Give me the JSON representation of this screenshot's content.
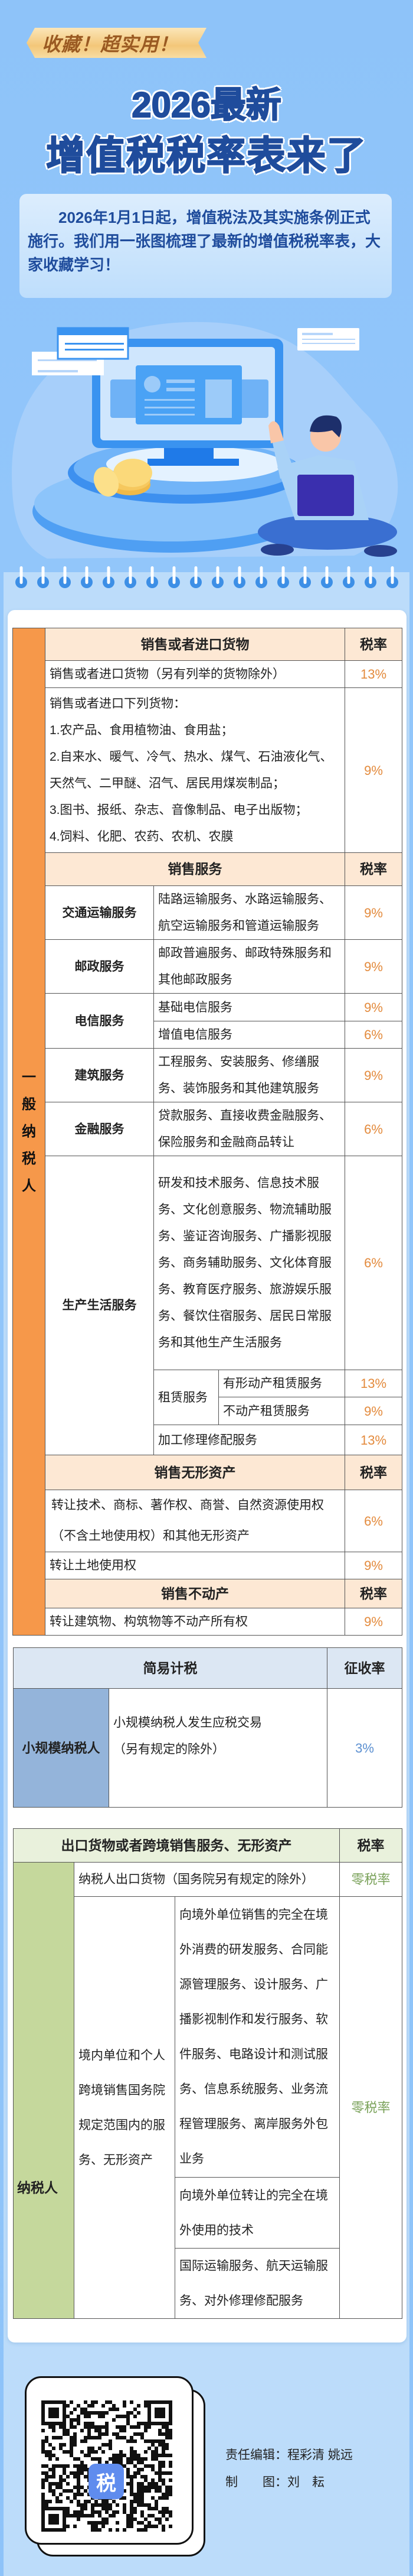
{
  "header": {
    "badge": "收藏！超实用！",
    "title_line1": "2026最新",
    "title_line2": "增值税税率表来了",
    "intro": "2026年1月1日起，增值税法及其实施条例正式施行。我们用一张图梳理了最新的增值税税率表，大家收藏学习！"
  },
  "general_taxpayer": {
    "side_label": "一般纳税人",
    "goods": {
      "header": "销售或者进口货物",
      "rate_header": "税率",
      "general": {
        "text": "销售或者进口货物（另有列举的货物除外）",
        "rate": "13%"
      },
      "listed": {
        "intro": "销售或者进口下列货物：",
        "items": [
          "1.农产品、食用植物油、食用盐；",
          "2.自来水、暖气、冷气、热水、煤气、石油液化气、天然气、二甲醚、沼气、居民用煤炭制品；",
          "3.图书、报纸、杂志、音像制品、电子出版物；",
          "4.饲料、化肥、农药、农机、农膜"
        ],
        "rate": "9%"
      }
    },
    "services": {
      "header": "销售服务",
      "rate_header": "税率",
      "transport": {
        "category": "交通运输服务",
        "desc": "陆路运输服务、水路运输服务、航空运输服务和管道运输服务",
        "rate": "9%"
      },
      "postal": {
        "category": "邮政服务",
        "desc": "邮政普遍服务、邮政特殊服务和其他邮政服务",
        "rate": "9%"
      },
      "telecom": {
        "category": "电信服务",
        "basic": {
          "desc": "基础电信服务",
          "rate": "9%"
        },
        "value_added": {
          "desc": "增值电信服务",
          "rate": "6%"
        }
      },
      "construction": {
        "category": "建筑服务",
        "desc": "工程服务、安装服务、修缮服务、装饰服务和其他建筑服务",
        "rate": "9%"
      },
      "finance": {
        "category": "金融服务",
        "desc": "贷款服务、直接收费金融服务、保险服务和金融商品转让",
        "rate": "6%"
      },
      "life": {
        "category": "生产生活服务",
        "desc": "研发和技术服务、信息技术服务、文化创意服务、物流辅助服务、鉴证咨询服务、广播影视服务、商务辅助服务、文化体育服务、教育医疗服务、旅游娱乐服务、餐饮住宿服务、居民日常服务和其他生产生活服务",
        "rate": "6%",
        "leasing": {
          "label": "租赁服务",
          "tangible": {
            "desc": "有形动产租赁服务",
            "rate": "13%"
          },
          "real_estate": {
            "desc": "不动产租赁服务",
            "rate": "9%"
          }
        },
        "repair": {
          "desc": "加工修理修配服务",
          "rate": "13%"
        }
      }
    },
    "intangible": {
      "header": "销售无形资产",
      "rate_header": "税率",
      "tech": {
        "desc": "转让技术、商标、著作权、商誉、自然资源使用权（不含土地使用权）和其他无形资产",
        "rate": "6%"
      },
      "land": {
        "desc": "转让土地使用权",
        "rate": "9%"
      }
    },
    "real_estate": {
      "header": "销售不动产",
      "rate_header": "税率",
      "transfer": {
        "desc": "转让建筑物、构筑物等不动产所有权",
        "rate": "9%"
      }
    }
  },
  "simple_method": {
    "header": "简易计税",
    "rate_header": "征收率",
    "label": "小规模纳税人",
    "desc_line1": "小规模纳税人发生应税交易",
    "desc_line2": "（另有规定的除外）",
    "rate": "3%"
  },
  "export": {
    "header": "出口货物或者跨境销售服务、无形资产",
    "rate_header": "税率",
    "side_label": "纳税人",
    "goods": {
      "desc": "纳税人出口货物（国务院另有规定的除外）",
      "rate": "零税率"
    },
    "cross_border": {
      "label": "境内单位和个人跨境销售国务院规定范围内的服务、无形资产",
      "items": [
        "向境外单位销售的完全在境外消费的研发服务、合同能源管理服务、设计服务、广播影视制作和发行服务、软件服务、电路设计和测试服务、信息系统服务、业务流程管理服务、离岸服务外包业务",
        "向境外单位转让的完全在境外使用的技术",
        "国际运输服务、航天运输服务、对外修理修配服务"
      ],
      "rate": "零税率"
    }
  },
  "footer": {
    "qr_logo": "税",
    "editor": "责任编辑：程彩清 姚远",
    "designer": "制　　图：刘　耘"
  },
  "colors": {
    "rate_orange": "#e38a3c",
    "side_orange": "#f6984a",
    "simple_blue": "#94b4da",
    "rate_blue": "#5b8fd0",
    "export_green": "#c5d89c",
    "zero_green": "#7aa25a",
    "title_blue": "#1f4c9c"
  }
}
